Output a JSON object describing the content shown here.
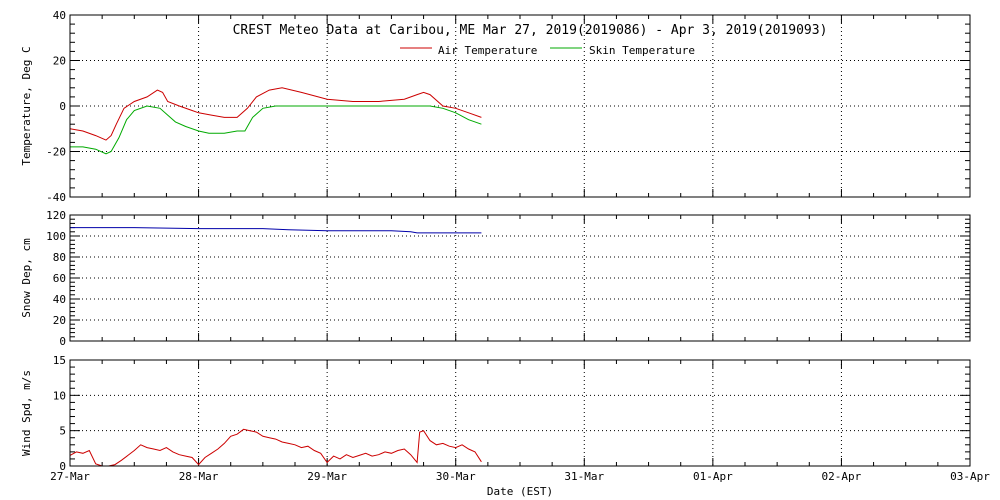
{
  "title": "CREST Meteo Data at Caribou, ME   Mar 27, 2019(2019086) - Apr  3, 2019(2019093)",
  "xlabel": "Date (EST)",
  "colors": {
    "air": "#cc0000",
    "skin": "#00aa00",
    "snow": "#0000aa",
    "wind": "#cc0000"
  },
  "chart_data": [
    {
      "type": "line",
      "ylabel": "Temperature, Deg C",
      "ylim": [
        -40,
        40
      ],
      "yticks": [
        -40,
        -20,
        0,
        20,
        40
      ],
      "x_categories": [
        "27-Mar",
        "28-Mar",
        "29-Mar",
        "30-Mar",
        "31-Mar",
        "01-Apr",
        "02-Apr",
        "03-Apr"
      ],
      "xlim_days": [
        0,
        7
      ],
      "grid": true,
      "legend": "top-center",
      "series": [
        {
          "name": "Air Temperature",
          "color": "air",
          "x": [
            0,
            0.1,
            0.2,
            0.28,
            0.32,
            0.36,
            0.42,
            0.5,
            0.6,
            0.68,
            0.72,
            0.76,
            0.85,
            0.95,
            1.0,
            1.1,
            1.2,
            1.3,
            1.38,
            1.45,
            1.55,
            1.65,
            1.8,
            2.0,
            2.2,
            2.4,
            2.6,
            2.7,
            2.75,
            2.8,
            2.9,
            3.0,
            3.1,
            3.2
          ],
          "y": [
            -10,
            -11,
            -13,
            -15,
            -13,
            -8,
            -1,
            2,
            4,
            7,
            6,
            2,
            0,
            -2,
            -3,
            -4,
            -5,
            -5,
            -1,
            4,
            7,
            8,
            6,
            3,
            2,
            2,
            3,
            5,
            6,
            5,
            0,
            -1,
            -3,
            -5
          ]
        },
        {
          "name": "Skin Temperature",
          "color": "skin",
          "x": [
            0,
            0.1,
            0.2,
            0.28,
            0.32,
            0.38,
            0.44,
            0.5,
            0.6,
            0.7,
            0.76,
            0.82,
            0.9,
            1.0,
            1.08,
            1.2,
            1.3,
            1.36,
            1.42,
            1.5,
            1.6,
            1.8,
            2.0,
            2.4,
            2.8,
            2.9,
            3.0,
            3.1,
            3.2
          ],
          "y": [
            -18,
            -18,
            -19,
            -21,
            -20,
            -14,
            -6,
            -2,
            0,
            -1,
            -4,
            -7,
            -9,
            -11,
            -12,
            -12,
            -11,
            -11,
            -5,
            -1,
            0,
            0,
            0,
            0,
            0,
            -1,
            -3,
            -6,
            -8
          ]
        }
      ]
    },
    {
      "type": "line",
      "ylabel": "Snow Dep, cm",
      "ylim": [
        0,
        120
      ],
      "yticks": [
        0,
        20,
        40,
        60,
        80,
        100,
        120
      ],
      "grid": true,
      "series": [
        {
          "name": "Snow Depth",
          "color": "snow",
          "x": [
            0,
            0.5,
            1.0,
            1.5,
            1.7,
            2.0,
            2.5,
            2.65,
            2.7,
            3.0,
            3.2
          ],
          "y": [
            108,
            108,
            107,
            107,
            106,
            105,
            105,
            104,
            103,
            103,
            103
          ]
        }
      ]
    },
    {
      "type": "line",
      "ylabel": "Wind Spd, m/s",
      "ylim": [
        0,
        15
      ],
      "yticks": [
        0,
        5,
        10,
        15
      ],
      "grid": true,
      "series": [
        {
          "name": "Wind Speed",
          "color": "wind",
          "x": [
            0,
            0.05,
            0.1,
            0.15,
            0.2,
            0.25,
            0.3,
            0.35,
            0.4,
            0.45,
            0.5,
            0.55,
            0.6,
            0.65,
            0.7,
            0.75,
            0.8,
            0.85,
            0.9,
            0.95,
            1.0,
            1.05,
            1.1,
            1.15,
            1.2,
            1.25,
            1.3,
            1.35,
            1.4,
            1.45,
            1.5,
            1.55,
            1.6,
            1.65,
            1.7,
            1.75,
            1.8,
            1.85,
            1.9,
            1.95,
            2.0,
            2.05,
            2.1,
            2.15,
            2.2,
            2.25,
            2.3,
            2.35,
            2.4,
            2.45,
            2.5,
            2.55,
            2.6,
            2.65,
            2.7,
            2.72,
            2.75,
            2.8,
            2.85,
            2.9,
            2.95,
            3.0,
            3.05,
            3.1,
            3.15,
            3.2
          ],
          "y": [
            1.5,
            2.0,
            1.8,
            2.2,
            0.3,
            0.0,
            0.0,
            0.2,
            0.8,
            1.5,
            2.2,
            3.0,
            2.6,
            2.4,
            2.2,
            2.6,
            2.0,
            1.6,
            1.4,
            1.2,
            0.2,
            1.2,
            1.8,
            2.4,
            3.2,
            4.2,
            4.5,
            5.2,
            5.0,
            4.8,
            4.2,
            4.0,
            3.8,
            3.4,
            3.2,
            3.0,
            2.6,
            2.8,
            2.2,
            1.8,
            0.5,
            1.4,
            1.0,
            1.6,
            1.2,
            1.5,
            1.8,
            1.4,
            1.6,
            2.0,
            1.8,
            2.2,
            2.4,
            1.6,
            0.5,
            4.8,
            5.0,
            3.6,
            3.0,
            3.2,
            2.8,
            2.6,
            3.0,
            2.4,
            2.0,
            0.6
          ]
        }
      ]
    }
  ]
}
